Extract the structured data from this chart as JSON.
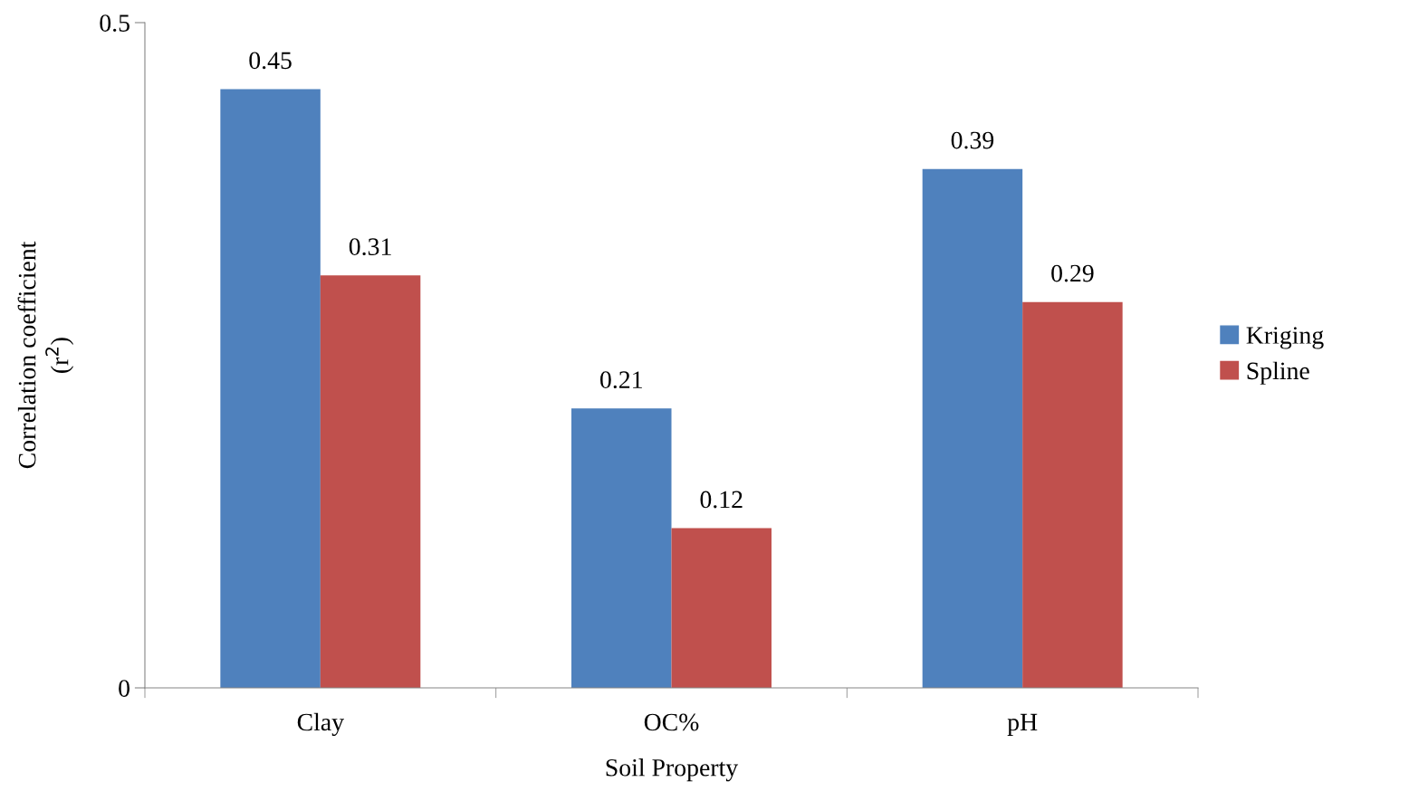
{
  "chart_data": {
    "type": "bar",
    "xlabel": "Soil Property",
    "ylabel": "Correlation coefficient\n(r$^{2}$)",
    "categories": [
      "Clay",
      "OC%",
      "pH"
    ],
    "series": [
      {
        "name": "Kriging",
        "color": "#4f81bd",
        "values": [
          0.45,
          0.21,
          0.39
        ]
      },
      {
        "name": "Spline",
        "color": "#c0504d",
        "values": [
          0.31,
          0.12,
          0.29
        ]
      }
    ],
    "ylim": [
      0,
      0.5
    ],
    "yticks": [
      0,
      0.5
    ],
    "data_labels": true,
    "legend": "right",
    "grid": false
  }
}
